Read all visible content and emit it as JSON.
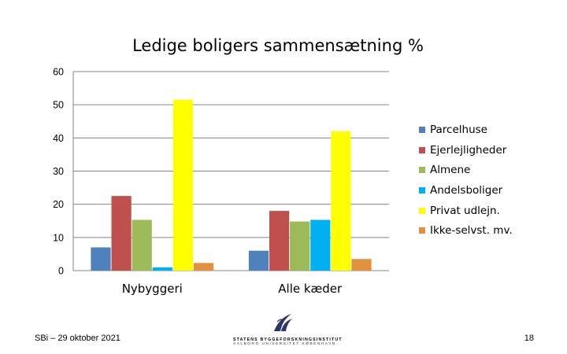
{
  "chart_data": {
    "type": "bar",
    "title": "Ledige boligers sammensætning %",
    "categories": [
      "Nybyggeri",
      "Alle kæder"
    ],
    "series": [
      {
        "name": "Parcelhuse",
        "color": "#4f81bd",
        "values": [
          7,
          6
        ]
      },
      {
        "name": "Ejerlejligheder",
        "color": "#c0504d",
        "values": [
          22.5,
          18
        ]
      },
      {
        "name": "Almene",
        "color": "#9bbb59",
        "values": [
          15.3,
          14.8
        ]
      },
      {
        "name": "Andelsboliger",
        "color": "#00b0f0",
        "values": [
          1,
          15.3
        ]
      },
      {
        "name": "Privat udlejn.",
        "color": "#ffff00",
        "values": [
          51.5,
          42
        ]
      },
      {
        "name": "Ikke-selvst. mv.",
        "color": "#e3913f",
        "values": [
          2.3,
          3.5
        ]
      }
    ],
    "ylim": [
      0,
      60
    ],
    "yticks": [
      "0",
      "10",
      "20",
      "30",
      "40",
      "50",
      "60"
    ],
    "grid": true,
    "legend": "right"
  },
  "footer": {
    "left": "SBi – 29 oktober 2021",
    "page": "18"
  },
  "logo": {
    "icon": "institute-logo-icon",
    "line1": "STATENS BYGGEFORSKNINGSINSTITUT",
    "line2": "AALBORG UNIVERSITET KØBENHAVN"
  }
}
